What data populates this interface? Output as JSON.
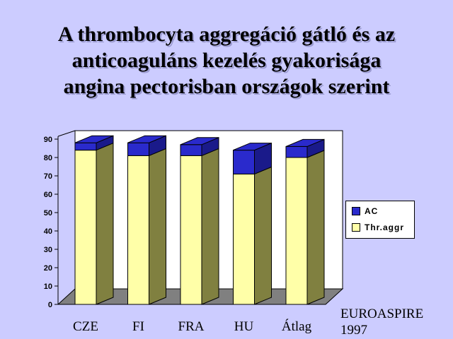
{
  "title_lines": [
    "A thrombocyta aggregáció gátló és az",
    "anticoaguláns kezelés gyakorisága",
    "angina pectorisban országok szerint"
  ],
  "source_lines": [
    "EUROASPIRE",
    "1997"
  ],
  "colors": {
    "background": "#CCCCFF",
    "thr_front": "#FFFFA8",
    "thr_side": "#808040",
    "ac_front": "#2A2ACC",
    "ac_side": "#1A1A8A",
    "plot_wall": "#FFFFFF",
    "floor": "#808080"
  },
  "chart_data": {
    "type": "bar",
    "stacked": true,
    "three_d": true,
    "categories": [
      "CZE",
      "FI",
      "FRA",
      "HU",
      "Átlag"
    ],
    "series": [
      {
        "name": "Thr.aggr",
        "values": [
          84,
          81,
          81,
          71,
          80
        ]
      },
      {
        "name": "AC",
        "values": [
          4,
          7,
          6,
          13,
          6
        ]
      }
    ],
    "yticks": [
      "0",
      "10",
      "20",
      "30",
      "40",
      "50",
      "60",
      "70",
      "80",
      "90"
    ],
    "ylim": [
      0,
      90
    ],
    "grid": false,
    "legend": [
      "AC",
      "Thr.aggr"
    ],
    "legend_position": "right"
  }
}
